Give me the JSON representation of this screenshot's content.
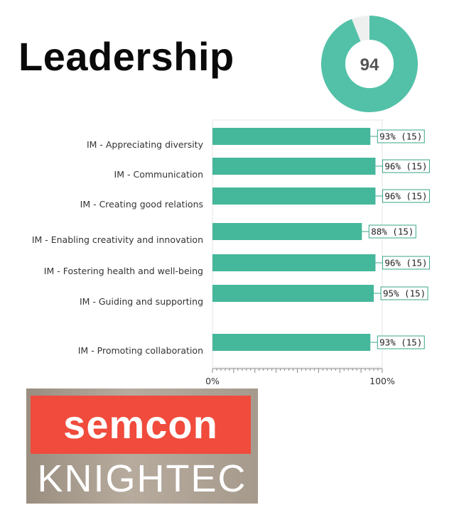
{
  "heading": "Leadership",
  "score": {
    "value": 94,
    "label": "94",
    "accent": "#52c1a8",
    "remainder": "#eef0ef"
  },
  "logo": {
    "brand": "semcon",
    "sub": "KNIGHTEC",
    "brand_color": "#f04b3c"
  },
  "chart_data": {
    "type": "bar",
    "orientation": "horizontal",
    "categories": [
      "IM - Appreciating diversity",
      "IM - Communication",
      "IM - Creating good relations",
      "IM - Enabling creativity and innovation",
      "IM - Fostering health and well-being",
      "IM - Guiding and supporting",
      "IM - Promoting collaboration"
    ],
    "values": [
      93,
      96,
      96,
      88,
      96,
      95,
      93
    ],
    "data_labels": [
      "93% (15)",
      "96% (15)",
      "96% (15)",
      "88% (15)",
      "96% (15)",
      "95% (15)",
      "93% (15)"
    ],
    "xlim": [
      0,
      100
    ],
    "x_tick_labels": [
      "0%",
      "100%"
    ],
    "bar_color": "#45b79b",
    "grid": false
  }
}
